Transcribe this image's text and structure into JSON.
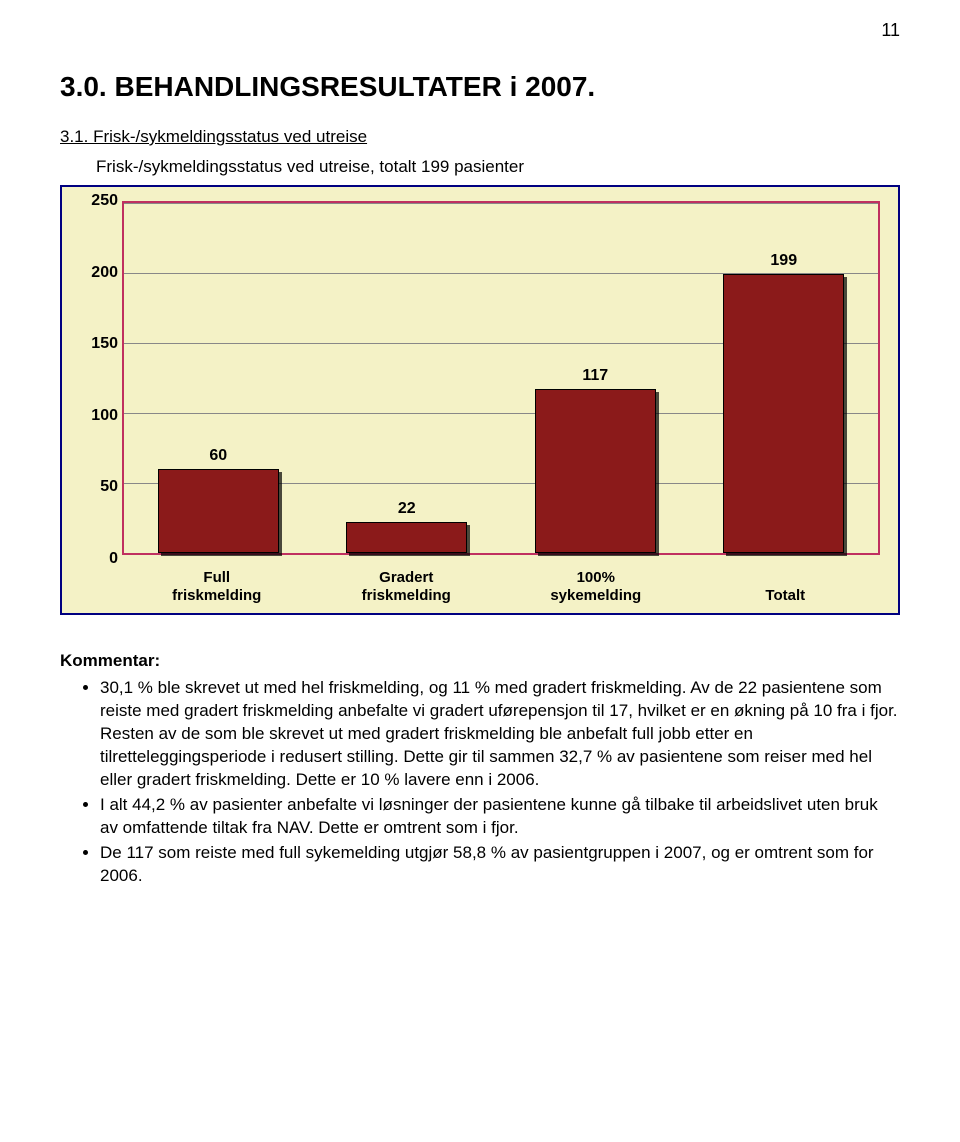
{
  "page_number": "11",
  "heading": "3.0. BEHANDLINGSRESULTATER i 2007.",
  "subheading_num": "3.1. Frisk-/sykmeldingsstatus ved utreise",
  "chart_caption": "Frisk-/sykmeldingsstatus ved utreise, totalt 199 pasienter",
  "chart": {
    "type": "bar",
    "background_color": "#f4f2c6",
    "outer_border_color": "#000080",
    "plot_border_color": "#c03060",
    "grid_color": "#888888",
    "bar_fill": "#8b1a1a",
    "bar_border": "#000000",
    "label_color": "#000000",
    "tick_fontsize": 16,
    "barlabel_fontsize": 16,
    "xtick_fontsize": 15,
    "ymin": 0,
    "ymax": 250,
    "ytick_step": 50,
    "yticks": [
      "0",
      "50",
      "100",
      "150",
      "200",
      "250"
    ],
    "bar_width_pct": 16,
    "categories": [
      {
        "label_lines": [
          "Full",
          "friskmelding"
        ],
        "value": 60,
        "label": "60"
      },
      {
        "label_lines": [
          "Gradert",
          "friskmelding"
        ],
        "value": 22,
        "label": "22"
      },
      {
        "label_lines": [
          "100%",
          "sykemelding"
        ],
        "value": 117,
        "label": "117"
      },
      {
        "label_lines": [
          "Totalt"
        ],
        "value": 199,
        "label": "199"
      }
    ]
  },
  "commentary_heading": "Kommentar:",
  "bullets": [
    "30,1 % ble skrevet ut med hel friskmelding, og 11 % med gradert friskmelding. Av de 22 pasientene som reiste med gradert friskmelding anbefalte vi gradert uførepensjon til 17, hvilket er en økning på 10 fra i fjor. Resten av de som ble skrevet ut med gradert friskmelding ble anbefalt full jobb etter en tilretteleggingsperiode i redusert stilling. Dette gir til sammen 32,7 % av pasientene som reiser med hel eller gradert friskmelding. Dette er 10 % lavere enn i 2006.",
    "I alt 44,2 % av pasienter anbefalte vi løsninger der pasientene kunne gå tilbake til arbeidslivet uten bruk av omfattende tiltak fra NAV. Dette er omtrent som i fjor.",
    "De 117 som reiste med full sykemelding utgjør 58,8 % av pasientgruppen i 2007, og er omtrent som for 2006."
  ]
}
